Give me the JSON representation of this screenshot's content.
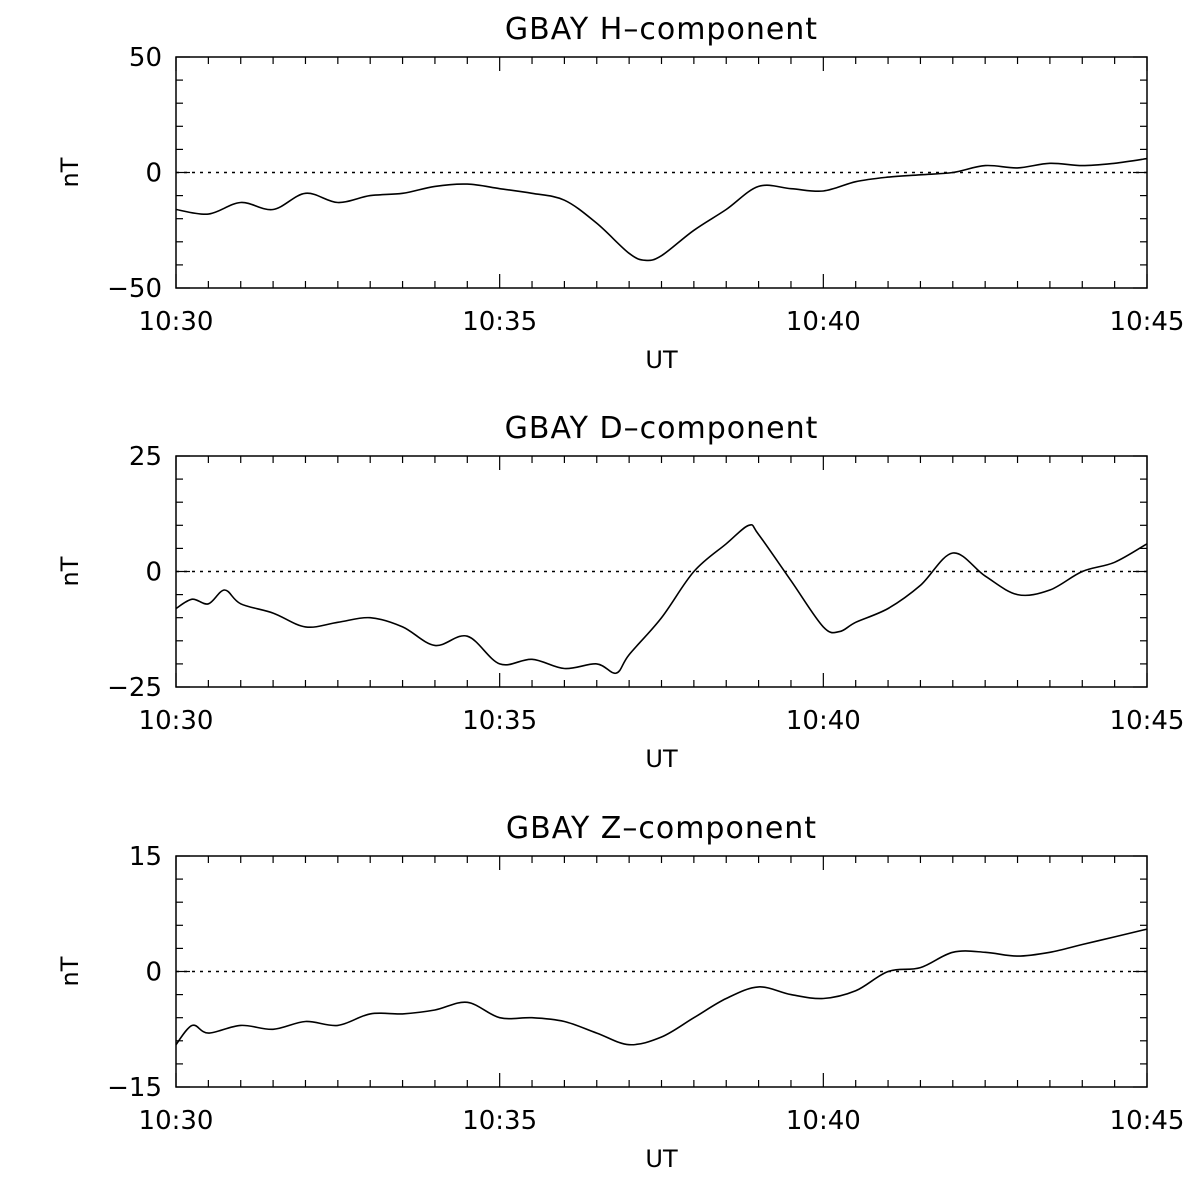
{
  "chart_data": [
    {
      "type": "line",
      "title": "GBAY H–component",
      "xlabel": "UT",
      "ylabel": "nT",
      "xlim": [
        "10:30",
        "10:45"
      ],
      "ylim": [
        -50,
        50
      ],
      "x_ticks": [
        "10:30",
        "10:35",
        "10:40",
        "10:45"
      ],
      "y_ticks": [
        "50",
        "0",
        "−50"
      ],
      "reference_line": 0,
      "series": [
        {
          "x": [
            "10:30",
            "10:30.5",
            "10:31",
            "10:31.5",
            "10:32",
            "10:32.5",
            "10:33",
            "10:33.5",
            "10:34",
            "10:34.5",
            "10:35",
            "10:35.5",
            "10:36",
            "10:36.5",
            "10:37",
            "10:37.25",
            "10:37.5",
            "10:38",
            "10:38.5",
            "10:39",
            "10:39.5",
            "10:40",
            "10:40.5",
            "10:41",
            "10:41.5",
            "10:42",
            "10:42.5",
            "10:43",
            "10:43.5",
            "10:44",
            "10:44.5",
            "10:45"
          ],
          "values": [
            -16,
            -18,
            -13,
            -16,
            -9,
            -13,
            -10,
            -9,
            -6,
            -5,
            -7,
            -9,
            -12,
            -22,
            -35,
            -38,
            -36,
            -25,
            -16,
            -6,
            -7,
            -8,
            -4,
            -2,
            -1,
            0,
            3,
            2,
            4,
            3,
            4,
            6
          ]
        }
      ]
    },
    {
      "type": "line",
      "title": "GBAY D–component",
      "xlabel": "UT",
      "ylabel": "nT",
      "xlim": [
        "10:30",
        "10:45"
      ],
      "ylim": [
        -25,
        25
      ],
      "x_ticks": [
        "10:30",
        "10:35",
        "10:40",
        "10:45"
      ],
      "y_ticks": [
        "25",
        "0",
        "−25"
      ],
      "reference_line": 0,
      "series": [
        {
          "x": [
            "10:30",
            "10:30.25",
            "10:30.5",
            "10:30.75",
            "10:31",
            "10:31.5",
            "10:32",
            "10:32.5",
            "10:33",
            "10:33.5",
            "10:34",
            "10:34.5",
            "10:35",
            "10:35.5",
            "10:36",
            "10:36.5",
            "10:36.8",
            "10:37",
            "10:37.5",
            "10:38",
            "10:38.5",
            "10:38.85",
            "10:39",
            "10:39.5",
            "10:40",
            "10:40.25",
            "10:40.5",
            "10:41",
            "10:41.5",
            "10:42",
            "10:42.5",
            "10:43",
            "10:43.5",
            "10:44",
            "10:44.5",
            "10:45"
          ],
          "values": [
            -8,
            -6,
            -7,
            -4,
            -7,
            -9,
            -12,
            -11,
            -10,
            -12,
            -16,
            -14,
            -20,
            -19,
            -21,
            -20,
            -22,
            -18,
            -10,
            0,
            6,
            10,
            8,
            -2,
            -12,
            -13,
            -11,
            -8,
            -3,
            4,
            -1,
            -5,
            -4,
            0,
            2,
            6
          ]
        }
      ]
    },
    {
      "type": "line",
      "title": "GBAY Z–component",
      "xlabel": "UT",
      "ylabel": "nT",
      "xlim": [
        "10:30",
        "10:45"
      ],
      "ylim": [
        -15,
        15
      ],
      "x_ticks": [
        "10:30",
        "10:35",
        "10:40",
        "10:45"
      ],
      "y_ticks": [
        "15",
        "0",
        "−15"
      ],
      "reference_line": 0,
      "series": [
        {
          "x": [
            "10:30",
            "10:30.25",
            "10:30.5",
            "10:31",
            "10:31.5",
            "10:32",
            "10:32.5",
            "10:33",
            "10:33.5",
            "10:34",
            "10:34.5",
            "10:35",
            "10:35.5",
            "10:36",
            "10:36.5",
            "10:37",
            "10:37.5",
            "10:38",
            "10:38.5",
            "10:39",
            "10:39.5",
            "10:40",
            "10:40.5",
            "10:41",
            "10:41.5",
            "10:42",
            "10:42.5",
            "10:43",
            "10:43.5",
            "10:44",
            "10:44.5",
            "10:45"
          ],
          "values": [
            -9.5,
            -7,
            -8,
            -7,
            -7.5,
            -6.5,
            -7,
            -5.5,
            -5.5,
            -5,
            -4,
            -6,
            -6,
            -6.5,
            -8,
            -9.5,
            -8.5,
            -6,
            -3.5,
            -2,
            -3,
            -3.5,
            -2.5,
            0,
            0.5,
            2.5,
            2.5,
            2,
            2.5,
            3.5,
            4.5,
            5.5
          ]
        }
      ]
    }
  ]
}
